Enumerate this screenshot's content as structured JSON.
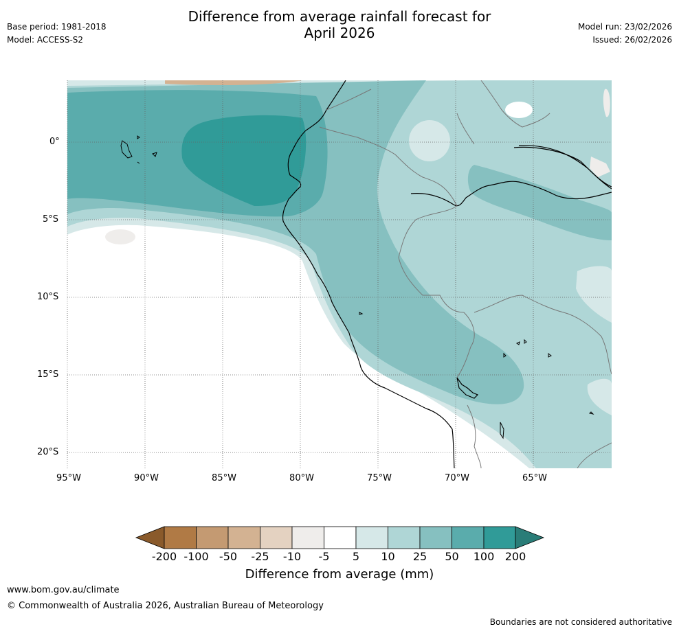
{
  "header": {
    "title_line1": "Difference from average rainfall forecast for",
    "title_line2": "April 2026",
    "base_period": "Base period: 1981-2018",
    "model": "Model: ACCESS-S2",
    "model_run": "Model run: 23/02/2026",
    "issued": "Issued: 26/02/2026"
  },
  "map": {
    "lat_labels": [
      "0°",
      "5°S",
      "10°S",
      "15°S",
      "20°S"
    ],
    "lon_labels": [
      "95°W",
      "90°W",
      "85°W",
      "80°W",
      "75°W",
      "70°W",
      "65°W"
    ]
  },
  "legend": {
    "title": "Difference from average (mm)",
    "tick_labels": [
      "-200",
      "-100",
      "-50",
      "-25",
      "-10",
      "-5",
      "5",
      "10",
      "25",
      "50",
      "100",
      "200"
    ],
    "colors": {
      "low_extend": "#8a5a2b",
      "bins": [
        "#b07a45",
        "#c49a72",
        "#d3b292",
        "#e4d2c1",
        "#efedeb",
        "#ffffff",
        "#d6e8e8",
        "#afd6d6",
        "#86c0c0",
        "#5aacac",
        "#309b98"
      ],
      "high_extend": "#2a7d78"
    }
  },
  "footer": {
    "website": "www.bom.gov.au/climate",
    "copyright": "© Commonwealth of Australia 2026, Australian Bureau of Meteorology",
    "disclaimer": "Boundaries are not considered authoritative"
  }
}
